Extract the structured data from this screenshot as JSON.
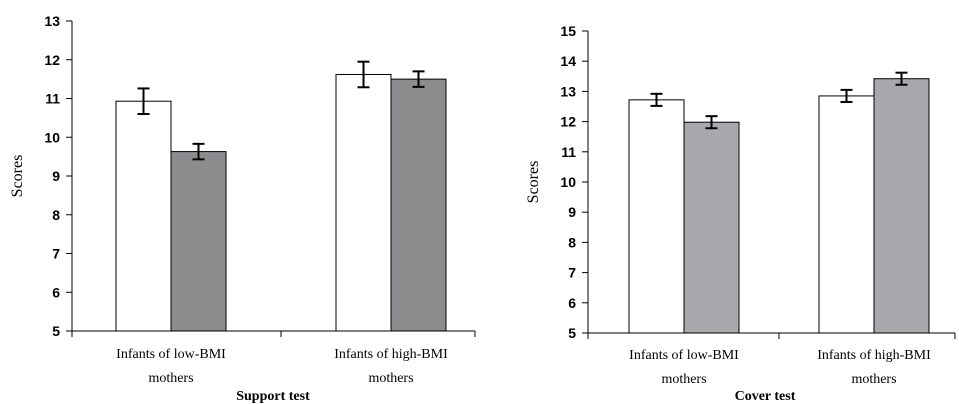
{
  "chart_data": [
    {
      "type": "bar",
      "title": "Support test",
      "xlabel": "",
      "ylabel": "Scores",
      "ylim": [
        5,
        13
      ],
      "yticks": [
        5,
        6,
        7,
        8,
        9,
        10,
        11,
        12,
        13
      ],
      "grid": false,
      "legend": "none",
      "categories": [
        [
          "Infants of low-BMI",
          "mothers"
        ],
        [
          "Infants of high-BMI",
          "mothers"
        ]
      ],
      "series": [
        {
          "values": [
            10.93,
            11.62
          ],
          "errors": [
            0.33,
            0.33
          ],
          "color": "#ffffff"
        },
        {
          "values": [
            9.63,
            11.5
          ],
          "errors": [
            0.2,
            0.2
          ],
          "color": "#8c8c8f"
        }
      ]
    },
    {
      "type": "bar",
      "title": "Cover test",
      "xlabel": "",
      "ylabel": "Scores",
      "ylim": [
        5,
        15
      ],
      "yticks": [
        5,
        6,
        7,
        8,
        9,
        10,
        11,
        12,
        13,
        14,
        15
      ],
      "grid": false,
      "legend": "none",
      "categories": [
        [
          "Infants of low-BMI",
          "mothers"
        ],
        [
          "Infants of high-BMI",
          "mothers"
        ]
      ],
      "series": [
        {
          "values": [
            12.72,
            12.85
          ],
          "errors": [
            0.2,
            0.2
          ],
          "color": "#ffffff"
        },
        {
          "values": [
            11.98,
            13.42
          ],
          "errors": [
            0.2,
            0.2
          ],
          "color": "#a8a9ad"
        }
      ]
    }
  ]
}
